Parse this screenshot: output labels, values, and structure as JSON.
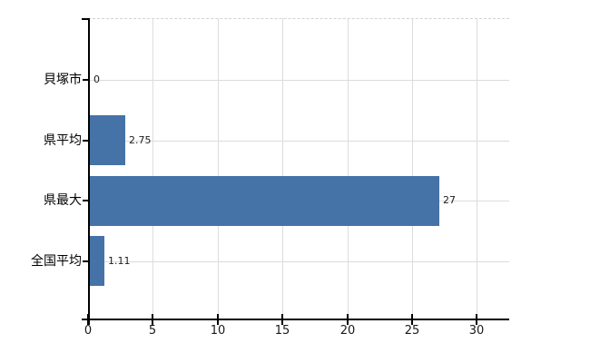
{
  "chart_data": {
    "type": "bar",
    "orientation": "horizontal",
    "title": "",
    "xlabel": "",
    "ylabel": "",
    "categories": [
      "貝塚市",
      "県平均",
      "県最大",
      "全国平均"
    ],
    "values": [
      0,
      2.75,
      27,
      1.11
    ],
    "data_labels": [
      "0",
      "2.75",
      "27",
      "1.11"
    ],
    "x_ticks": [
      0,
      5,
      10,
      15,
      20,
      25,
      30
    ],
    "x_tick_labels": [
      "0",
      "5",
      "10",
      "15",
      "20",
      "25",
      "30"
    ],
    "xlim": [
      0,
      32.5
    ],
    "grid": "on",
    "legend": "none",
    "colors": {
      "bar": "#4572A7",
      "axis": "#000000",
      "vertical_grid": "#dcdcdc",
      "horizontal_grid": "#d9ded9",
      "top_border": "#d2d2d2",
      "data_label": "#1a1a1a",
      "tick_label": "#1a1a1a",
      "category_label": "#000000",
      "background": "#ffffff"
    }
  }
}
